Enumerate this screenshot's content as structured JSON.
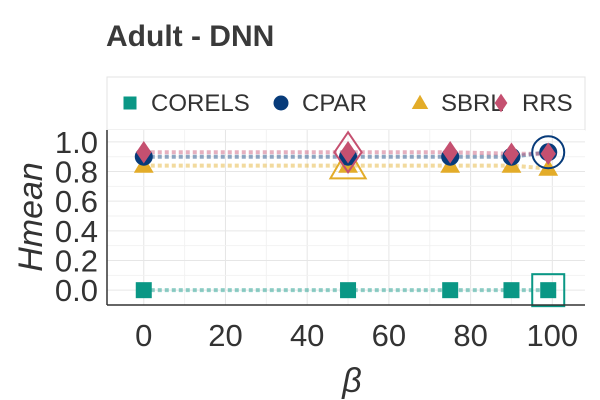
{
  "chart_data": {
    "type": "line",
    "title": "Adult - DNN",
    "xlabel": "β",
    "ylabel": "Hmean",
    "x": [
      0,
      50,
      75,
      90,
      99
    ],
    "xlim": [
      -9,
      108
    ],
    "ylim": [
      -0.1,
      1.08
    ],
    "xticks": [
      "0",
      "20",
      "40",
      "60",
      "80",
      "100"
    ],
    "yticks": [
      "0.0",
      "0.2",
      "0.4",
      "0.6",
      "0.8",
      "1.0"
    ],
    "grid": true,
    "legend_position": "top",
    "series": [
      {
        "name": "CORELS",
        "marker": "square",
        "color": "#0a9785",
        "values": [
          0.0,
          0.0,
          0.0,
          0.0,
          0.0
        ],
        "highlight": [
          99
        ]
      },
      {
        "name": "CPAR",
        "marker": "circle",
        "color": "#073b7a",
        "values": [
          0.9,
          0.9,
          0.9,
          0.9,
          0.93
        ],
        "highlight": [
          99
        ]
      },
      {
        "name": "SBRL",
        "marker": "triangle",
        "color": "#e3ac29",
        "values": [
          0.84,
          0.84,
          0.84,
          0.84,
          0.82
        ],
        "highlight": [
          50
        ]
      },
      {
        "name": "RRS",
        "marker": "diamond",
        "color": "#c55070",
        "values": [
          0.93,
          0.93,
          0.93,
          0.92,
          0.92
        ],
        "highlight": [
          50
        ]
      }
    ]
  }
}
